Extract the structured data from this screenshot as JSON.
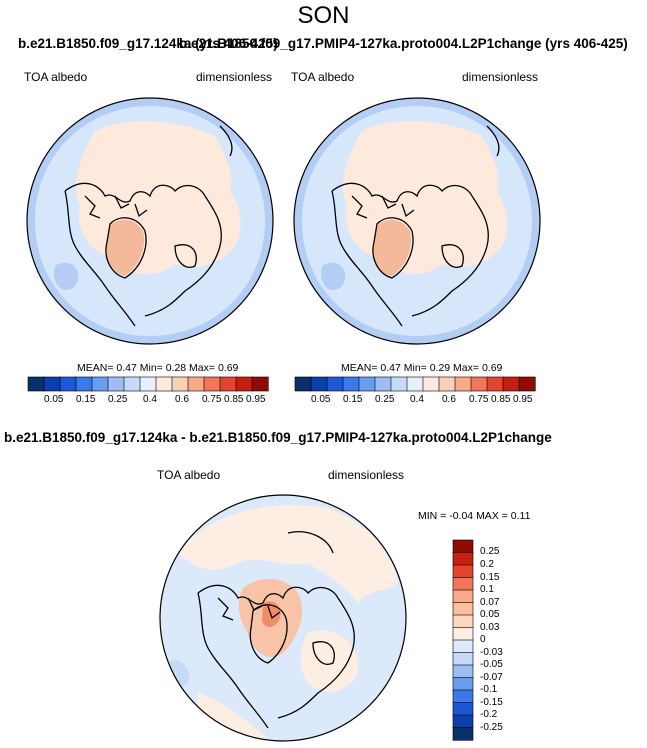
{
  "figure": {
    "title": "SON"
  },
  "panels": [
    {
      "title": "b.e21.B1850.f09_g17.124ka (yrs 406-425)",
      "left_label": "TOA albedo",
      "right_label": "dimensionless",
      "stats": "MEAN=  0.47  Min=  0.28  Max=  0.69"
    },
    {
      "title": "b.e21.B1850.f09_g17.PMIP4-127ka.proto004.L2P1change (yrs 406-425)",
      "left_label": "TOA albedo",
      "right_label": "dimensionless",
      "stats": "MEAN=  0.47  Min=  0.29  Max=  0.69"
    },
    {
      "title": "b.e21.B1850.f09_g17.124ka - b.e21.B1850.f09_g17.PMIP4-127ka.proto004.L2P1change",
      "left_label": "TOA albedo",
      "right_label": "dimensionless",
      "stats": "MIN =  -0.04 MAX =   0.11"
    }
  ],
  "colorbar_top": {
    "tick_labels": [
      "0.05",
      "0.15",
      "0.25",
      "0.4",
      "0.6",
      "0.75",
      "0.85",
      "0.95"
    ],
    "colors": [
      "#08306b",
      "#0b3fae",
      "#1c58d6",
      "#3b78e8",
      "#6a9cf0",
      "#9cbef4",
      "#c6dbf7",
      "#e6eefb",
      "#fdeadd",
      "#fbd0b8",
      "#f7a98a",
      "#f1765a",
      "#e3452f",
      "#c81d12",
      "#8e0b06"
    ]
  },
  "colorbar_bottom": {
    "tick_labels": [
      "0.25",
      "0.2",
      "0.15",
      "0.1",
      "0.07",
      "0.05",
      "0.03",
      "0",
      "-0.03",
      "-0.05",
      "-0.07",
      "-0.1",
      "-0.15",
      "-0.2",
      "-0.25"
    ],
    "colors": [
      "#8e0b06",
      "#c81d12",
      "#e3452f",
      "#f1765a",
      "#f7a98a",
      "#fbbf9f",
      "#fcd6c0",
      "#fdeee4",
      "#dce9fb",
      "#c6dbf7",
      "#9cbef4",
      "#6a9cf0",
      "#3b78e8",
      "#1c58d6",
      "#0b3fae",
      "#08306b"
    ]
  },
  "map_colors": {
    "ocean_light": "#d6e6fb",
    "ocean_mid": "#b4cdf5",
    "ice_cap": "#fdeadd",
    "greenland": "#f4b99a",
    "anomaly_pos": "#f8c3a6",
    "anomaly_strong": "#f08d68"
  }
}
